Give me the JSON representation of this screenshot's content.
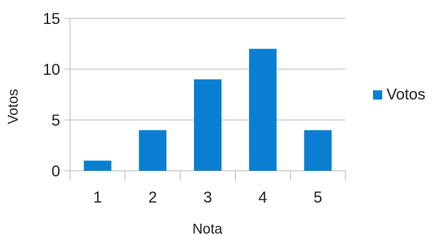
{
  "chart_data": {
    "type": "bar",
    "categories": [
      "1",
      "2",
      "3",
      "4",
      "5"
    ],
    "series": [
      {
        "name": "Votos",
        "values": [
          1,
          4,
          9,
          12,
          4
        ]
      }
    ],
    "xlabel": "Nota",
    "ylabel": "Votos",
    "ylim": [
      0,
      15
    ],
    "yticks": [
      "0",
      "5",
      "10",
      "15"
    ],
    "grid": true,
    "legend": "right",
    "bar_color": "#0a7fd1"
  }
}
